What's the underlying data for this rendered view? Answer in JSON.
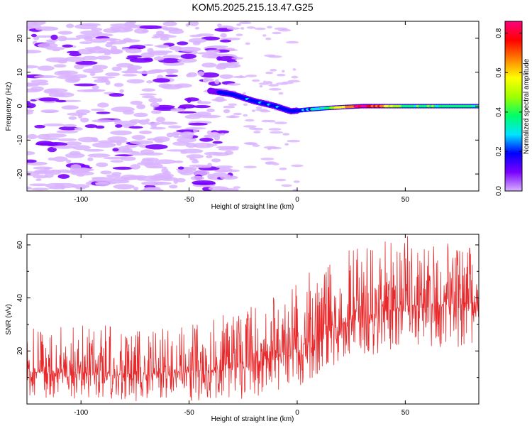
{
  "figure": {
    "title": "KOM5.2025.215.13.47.G25"
  },
  "chart_data": [
    {
      "type": "heatmap",
      "title": "KOM5.2025.215.13.47.G25",
      "xlabel": "Height of straight line (km)",
      "ylabel": "Frequency (Hz)",
      "xlim": [
        -125,
        84
      ],
      "ylim": [
        -25,
        25
      ],
      "xticks": [
        -100,
        -50,
        0,
        50
      ],
      "yticks": [
        -20,
        -10,
        0,
        10,
        20
      ],
      "colorbar": {
        "label": "Normalized spectral amplitude",
        "range": [
          0.0,
          0.86
        ],
        "ticks": [
          0.0,
          0.2,
          0.4,
          0.6,
          0.8
        ],
        "colormap": [
          "#d9b3ff",
          "#7a00ff",
          "#0000ff",
          "#00e5ff",
          "#00ff66",
          "#a0ff00",
          "#ffff00",
          "#ff8000",
          "#ff0000",
          "#ff0080"
        ]
      },
      "ridge": [
        {
          "x": -40,
          "f": 4.5,
          "a": 0.05
        },
        {
          "x": -30,
          "f": 3.5,
          "a": 0.12
        },
        {
          "x": -20,
          "f": 1.5,
          "a": 0.22
        },
        {
          "x": -10,
          "f": 0.0,
          "a": 0.18
        },
        {
          "x": -3,
          "f": -1.5,
          "a": 0.15
        },
        {
          "x": 5,
          "f": -1.0,
          "a": 0.25
        },
        {
          "x": 15,
          "f": -0.5,
          "a": 0.4
        },
        {
          "x": 30,
          "f": 0.0,
          "a": 0.86
        },
        {
          "x": 50,
          "f": 0.0,
          "a": 0.4
        },
        {
          "x": 84,
          "f": 0.0,
          "a": 0.35
        }
      ]
    },
    {
      "type": "line",
      "xlabel": "Height of straight line (km)",
      "ylabel": "SNR (v/v)",
      "xlim": [
        -125,
        84
      ],
      "ylim": [
        0,
        64
      ],
      "xticks": [
        -100,
        -50,
        0,
        50
      ],
      "yticks": [
        20,
        40,
        60
      ],
      "color": "#e8282a",
      "series": [
        {
          "x": [
            -125,
            -100,
            -75,
            -50,
            -25,
            0,
            25,
            50,
            84
          ],
          "mean": [
            12,
            12,
            11,
            12,
            14,
            21,
            32,
            37,
            38
          ],
          "max": [
            30,
            31,
            28,
            30,
            36,
            47,
            59,
            64,
            59
          ],
          "min": [
            2,
            2,
            1,
            1,
            2,
            6,
            16,
            20,
            22
          ]
        }
      ]
    }
  ]
}
